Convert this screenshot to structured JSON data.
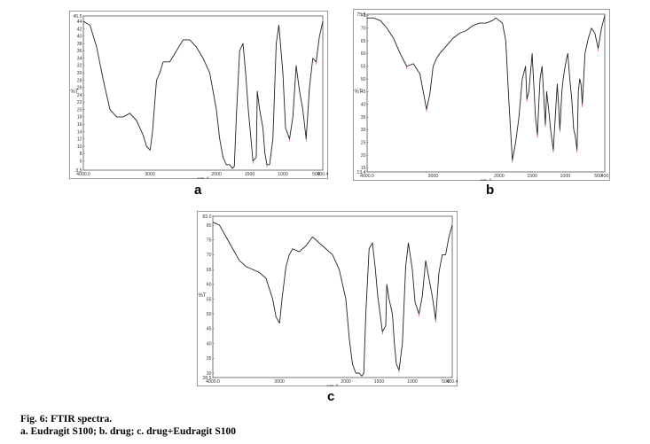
{
  "figure": {
    "caption_title": "Fig. 6: FTIR spectra.",
    "caption_sub": "a. Eudragit S100; b. drug; c. drug+Eudragit S100"
  },
  "chart_data": [
    {
      "type": "line",
      "panel_label": "a",
      "title": "",
      "xlabel": "cm-1",
      "ylabel": "%T",
      "xlim": [
        4000,
        400
      ],
      "ylim": [
        3.5,
        45.5
      ],
      "x_reversed": true,
      "x_ticks": [
        "4000.0",
        "3000",
        "2000",
        "1500",
        "1000",
        "500",
        "400.4"
      ],
      "x_tick_values": [
        4000,
        3000,
        2000,
        1500,
        1000,
        500,
        400
      ],
      "y_ticks": [
        "3.5",
        "6",
        "8",
        "10",
        "12",
        "14",
        "16",
        "18",
        "20",
        "22",
        "24",
        "26",
        "28",
        "30",
        "32",
        "34",
        "36",
        "38",
        "40",
        "42",
        "44",
        "45.5"
      ],
      "y_tick_values": [
        3.5,
        6,
        8,
        10,
        12,
        14,
        16,
        18,
        20,
        22,
        24,
        26,
        28,
        30,
        32,
        34,
        36,
        38,
        40,
        42,
        44,
        45.5
      ],
      "x": [
        4000,
        3900,
        3800,
        3700,
        3600,
        3500,
        3400,
        3300,
        3200,
        3100,
        3050,
        3000,
        2995,
        2960,
        2900,
        2850,
        2800,
        2700,
        2600,
        2500,
        2400,
        2300,
        2200,
        2100,
        2000,
        1950,
        1900,
        1850,
        1800,
        1760,
        1730,
        1700,
        1650,
        1600,
        1560,
        1520,
        1485,
        1450,
        1400,
        1385,
        1350,
        1300,
        1270,
        1240,
        1200,
        1150,
        1100,
        1060,
        1000,
        960,
        900,
        850,
        800,
        750,
        700,
        650,
        600,
        550,
        500,
        450,
        400
      ],
      "y": [
        44,
        43,
        37,
        28,
        20,
        18,
        18,
        19,
        17,
        13,
        10,
        9,
        9,
        14,
        28,
        30,
        33,
        33,
        36,
        39,
        39,
        37,
        34,
        30,
        20,
        12,
        7,
        5,
        5,
        4,
        4.5,
        18,
        36,
        38,
        30,
        20,
        13,
        6,
        7,
        25,
        20,
        15,
        8,
        5,
        5,
        12,
        38,
        43,
        30,
        15,
        12,
        18,
        32,
        25,
        20,
        12,
        26,
        34,
        33,
        40,
        44
      ]
    },
    {
      "type": "line",
      "panel_label": "b",
      "title": "",
      "xlabel": "cm-1",
      "ylabel": "%T",
      "xlim": [
        4000,
        400
      ],
      "ylim": [
        13.4,
        75.5
      ],
      "x_reversed": true,
      "x_ticks": [
        "4000.0",
        "3000",
        "2000",
        "1500",
        "1000",
        "500",
        "400"
      ],
      "x_tick_values": [
        4000,
        3000,
        2000,
        1500,
        1000,
        500,
        400
      ],
      "y_ticks": [
        "13.4",
        "15",
        "20",
        "25",
        "30",
        "35",
        "40",
        "45",
        "50",
        "55",
        "60",
        "65",
        "70",
        "75",
        "75.5"
      ],
      "y_tick_values": [
        13.4,
        15,
        20,
        25,
        30,
        35,
        40,
        45,
        50,
        55,
        60,
        65,
        70,
        75,
        75.5
      ],
      "x": [
        4000,
        3900,
        3800,
        3700,
        3600,
        3500,
        3400,
        3300,
        3200,
        3150,
        3100,
        3050,
        3000,
        2950,
        2900,
        2800,
        2700,
        2600,
        2500,
        2400,
        2300,
        2200,
        2100,
        2050,
        2000,
        1950,
        1900,
        1850,
        1800,
        1750,
        1700,
        1650,
        1600,
        1580,
        1550,
        1500,
        1480,
        1450,
        1420,
        1400,
        1380,
        1350,
        1300,
        1280,
        1250,
        1220,
        1180,
        1150,
        1120,
        1100,
        1080,
        1050,
        1030,
        1000,
        980,
        960,
        930,
        900,
        870,
        850,
        820,
        800,
        780,
        760,
        740,
        700,
        650,
        600,
        550,
        500,
        450,
        400
      ],
      "y": [
        74,
        74,
        73,
        70,
        66,
        60,
        55,
        56,
        52,
        45,
        38,
        44,
        55,
        58,
        60,
        63,
        66,
        68,
        69,
        71,
        72,
        72,
        73,
        74,
        73,
        72,
        65,
        40,
        18,
        25,
        35,
        50,
        55,
        42,
        45,
        60,
        50,
        35,
        28,
        40,
        50,
        55,
        32,
        45,
        38,
        30,
        22,
        35,
        48,
        40,
        30,
        45,
        50,
        55,
        58,
        60,
        50,
        42,
        30,
        28,
        22,
        45,
        50,
        48,
        40,
        60,
        66,
        70,
        68,
        62,
        70,
        75
      ]
    },
    {
      "type": "line",
      "panel_label": "c",
      "title": "",
      "xlabel": "cm-1",
      "ylabel": "%T",
      "xlim": [
        4000,
        400
      ],
      "ylim": [
        28.5,
        83.0
      ],
      "x_reversed": true,
      "x_ticks": [
        "4000.0",
        "3000",
        "2000",
        "1500",
        "1000",
        "500",
        "400.4"
      ],
      "x_tick_values": [
        4000,
        3000,
        2000,
        1500,
        1000,
        500,
        400
      ],
      "y_ticks": [
        "28.5",
        "30",
        "35",
        "40",
        "45",
        "50",
        "55",
        "60",
        "65",
        "70",
        "75",
        "80",
        "83.0"
      ],
      "y_tick_values": [
        28.5,
        30,
        35,
        40,
        45,
        50,
        55,
        60,
        65,
        70,
        75,
        80,
        83.0
      ],
      "x": [
        4000,
        3900,
        3800,
        3700,
        3600,
        3500,
        3400,
        3300,
        3200,
        3100,
        3050,
        3000,
        2995,
        2960,
        2900,
        2850,
        2800,
        2700,
        2600,
        2500,
        2400,
        2300,
        2200,
        2100,
        2000,
        1950,
        1900,
        1850,
        1800,
        1760,
        1730,
        1700,
        1650,
        1600,
        1560,
        1520,
        1485,
        1450,
        1400,
        1385,
        1350,
        1300,
        1270,
        1240,
        1200,
        1150,
        1100,
        1060,
        1000,
        960,
        900,
        850,
        800,
        750,
        700,
        650,
        600,
        550,
        500,
        450,
        400
      ],
      "y": [
        81,
        80,
        76,
        72,
        68,
        66,
        65,
        64,
        62,
        55,
        49,
        47,
        47,
        55,
        66,
        70,
        72,
        71,
        73,
        76,
        74,
        72,
        70,
        65,
        55,
        42,
        33,
        30,
        30,
        29,
        30,
        50,
        72,
        74,
        66,
        56,
        50,
        44,
        46,
        60,
        55,
        50,
        40,
        33,
        31,
        40,
        66,
        74,
        65,
        54,
        50,
        56,
        68,
        62,
        56,
        48,
        64,
        70,
        70,
        76,
        80
      ]
    }
  ]
}
